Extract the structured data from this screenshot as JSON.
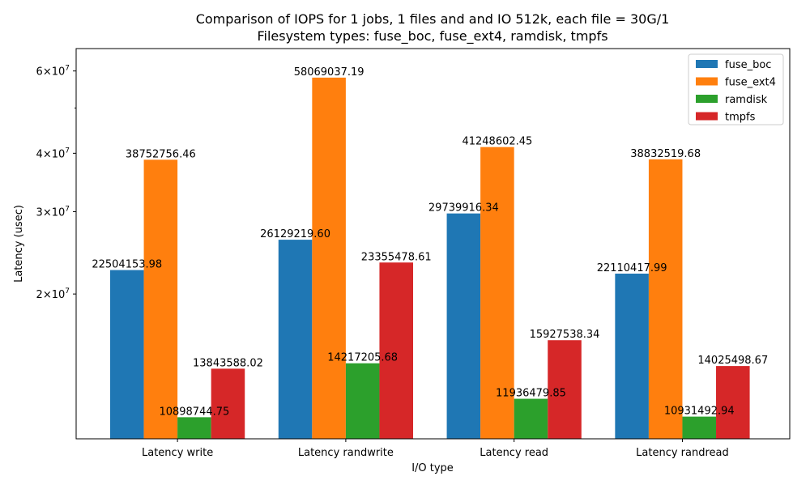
{
  "chart_data": {
    "type": "bar",
    "title": "Comparison of IOPS for 1 jobs, 1 files and  and IO 512k, each file = 30G/1",
    "subtitle": "Filesystem types: fuse_boc, fuse_ext4, ramdisk, tmpfs",
    "xlabel": "I/O type",
    "ylabel": "Latency (usec)",
    "yscale": "log",
    "ylim": [
      9800000,
      67000000
    ],
    "yticks": [
      {
        "value": 20000000,
        "mantissa": "2",
        "exponent": "7"
      },
      {
        "value": 30000000,
        "mantissa": "3",
        "exponent": "7"
      },
      {
        "value": 40000000,
        "mantissa": "4",
        "exponent": "7"
      },
      {
        "value": 60000000,
        "mantissa": "6",
        "exponent": "7"
      }
    ],
    "ytick_times": "×10",
    "minor_ytick": 50000000,
    "categories": [
      "Latency write",
      "Latency randwrite",
      "Latency read",
      "Latency randread"
    ],
    "series": [
      {
        "name": "fuse_boc",
        "color": "#1f77b4",
        "values": [
          22504153.98,
          26129219.6,
          29739916.34,
          22110417.99
        ],
        "labels": [
          "22504153.98",
          "26129219.60",
          "29739916.34",
          "22110417.99"
        ]
      },
      {
        "name": "fuse_ext4",
        "color": "#ff7f0e",
        "values": [
          38752756.46,
          58069037.19,
          41248602.45,
          38832519.68
        ],
        "labels": [
          "38752756.46",
          "58069037.19",
          "41248602.45",
          "38832519.68"
        ]
      },
      {
        "name": "ramdisk",
        "color": "#2ca02c",
        "values": [
          10898744.75,
          14217205.68,
          11936479.85,
          10931492.94
        ],
        "labels": [
          "10898744.75",
          "14217205.68",
          "11936479.85",
          "10931492.94"
        ]
      },
      {
        "name": "tmpfs",
        "color": "#d62728",
        "values": [
          13843588.02,
          23355478.61,
          15927538.34,
          14025498.67
        ],
        "labels": [
          "13843588.02",
          "23355478.61",
          "15927538.34",
          "14025498.67"
        ]
      }
    ],
    "legend": "top-right",
    "grid": false
  }
}
